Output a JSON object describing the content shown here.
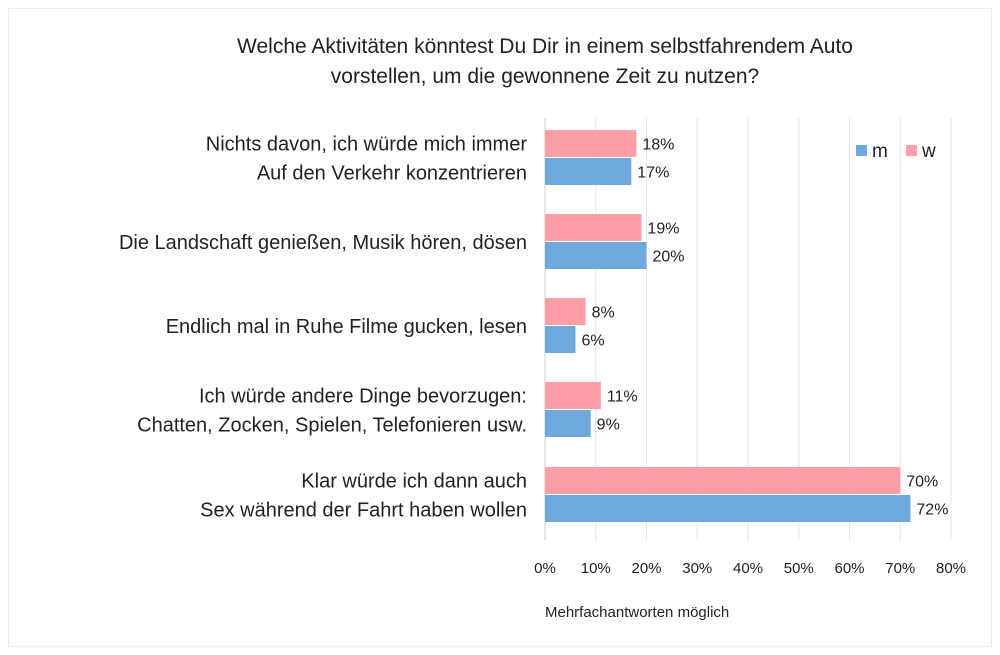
{
  "chart_data": {
    "type": "bar",
    "orientation": "horizontal",
    "title_lines": [
      "Welche Aktivitäten könntest Du Dir in einem selbstfahrendem Auto",
      "vorstellen, um die gewonnene Zeit zu nutzen?"
    ],
    "categories": [
      [
        "Nichts davon, ich würde mich immer",
        "Auf den Verkehr konzentrieren"
      ],
      [
        "Die Landschaft genießen, Musik hören, dösen"
      ],
      [
        "Endlich mal in Ruhe Filme gucken, lesen"
      ],
      [
        "Ich würde andere Dinge bevorzugen:",
        "Chatten, Zocken, Spielen, Telefonieren usw."
      ],
      [
        "Klar würde ich dann auch",
        "Sex während der Fahrt haben wollen"
      ]
    ],
    "series": [
      {
        "name": "w",
        "color": "#ff9ea6",
        "values": [
          18,
          19,
          8,
          11,
          70
        ],
        "labels": [
          "18%",
          "19%",
          "8%",
          "11%",
          "70%"
        ]
      },
      {
        "name": "m",
        "color": "#6fa8dc",
        "values": [
          17,
          20,
          6,
          9,
          72
        ],
        "labels": [
          "17%",
          "20%",
          "6%",
          "9%",
          "72%"
        ]
      }
    ],
    "legend_order": [
      "m",
      "w"
    ],
    "legend_position": "top-right",
    "xlim": [
      0,
      80
    ],
    "x_ticks": [
      0,
      10,
      20,
      30,
      40,
      50,
      60,
      70,
      80
    ],
    "x_tick_labels": [
      "0%",
      "10%",
      "20%",
      "30%",
      "40%",
      "50%",
      "60%",
      "70%",
      "80%"
    ],
    "grid": true,
    "note": "Mehrfachantworten möglich"
  }
}
